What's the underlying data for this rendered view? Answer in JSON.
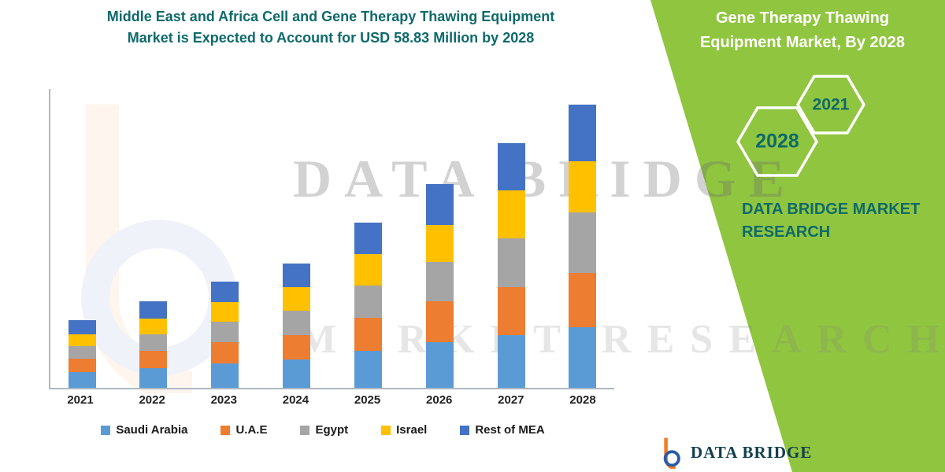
{
  "colors": {
    "accent_teal": "#0E6A6A",
    "panel_green": "#90C53F",
    "axis_gray": "#AEB9C2",
    "footer_text": "#14404E",
    "logo_orange": "#F47B20",
    "logo_blue": "#2B5BA8"
  },
  "title": {
    "line1": "Middle East and Africa Cell and Gene Therapy Thawing Equipment",
    "line2": "Market is Expected to Account for USD 58.83 Million by 2028"
  },
  "watermark": {
    "line1": "DATA BRIDGE",
    "line2": "MARKET RESEARCH"
  },
  "side_panel": {
    "heading": "Gene Therapy Thawing Equipment Market, By 2028",
    "hexagon_front": "2028",
    "hexagon_back": "2021",
    "brand": "DATA BRIDGE MARKET RESEARCH"
  },
  "footer": {
    "brand": "DATA BRIDGE"
  },
  "chart_data": {
    "type": "bar",
    "stacked": true,
    "title": "Middle East and Africa Cell and Gene Therapy Thawing Equipment Market is Expected to Account for USD 58.83 Million by 2028",
    "unit": "USD Million",
    "xlabel": "",
    "ylabel": "",
    "ylim": [
      0,
      60
    ],
    "grid": false,
    "legend_position": "bottom",
    "categories": [
      "2021",
      "2022",
      "2023",
      "2024",
      "2025",
      "2026",
      "2027",
      "2028"
    ],
    "series": [
      {
        "name": "Saudi Arabia",
        "color": "#5B9BD5",
        "values": [
          3.3,
          4.1,
          5.1,
          5.9,
          7.7,
          9.5,
          10.9,
          12.6
        ]
      },
      {
        "name": "U.A.E",
        "color": "#ED7D31",
        "values": [
          2.8,
          3.6,
          4.4,
          5.1,
          6.9,
          8.5,
          10.0,
          11.3
        ]
      },
      {
        "name": "Egypt",
        "color": "#A5A5A5",
        "values": [
          2.6,
          3.4,
          4.2,
          5.1,
          6.7,
          8.2,
          10.1,
          12.5
        ]
      },
      {
        "name": "Israel",
        "color": "#FFC000",
        "values": [
          2.5,
          3.3,
          4.1,
          4.9,
          6.5,
          7.7,
          10.1,
          10.6
        ]
      },
      {
        "name": "Rest of MEA",
        "color": "#4472C4",
        "values": [
          2.8,
          3.6,
          4.2,
          4.9,
          6.5,
          8.5,
          9.8,
          11.8
        ]
      }
    ]
  }
}
